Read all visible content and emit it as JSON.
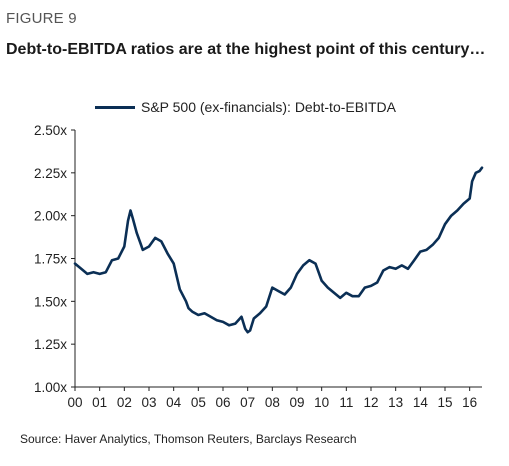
{
  "figure_label": "FIGURE 9",
  "title": "Debt-to-EBITDA ratios are at the highest point of this century…",
  "source": "Source: Haver Analytics, Thomson Reuters, Barclays Research",
  "colors": {
    "line": "#0b2f55",
    "axis": "#222222"
  },
  "chart_data": {
    "type": "line",
    "title": "Debt-to-EBITDA ratios are at the highest point of this century…",
    "xlabel": "",
    "ylabel": "",
    "ylim": [
      1.0,
      2.5
    ],
    "xlim": [
      2000.0,
      2016.5
    ],
    "grid": false,
    "legend_position": "top",
    "x_tick_labels": [
      "00",
      "01",
      "02",
      "03",
      "04",
      "05",
      "06",
      "07",
      "08",
      "09",
      "10",
      "11",
      "12",
      "13",
      "14",
      "15",
      "16"
    ],
    "y_tick_labels": [
      "1.00x",
      "1.25x",
      "1.50x",
      "1.75x",
      "2.00x",
      "2.25x",
      "2.50x"
    ],
    "series": [
      {
        "name": "S&P 500 (ex-financials): Debt-to-EBITDA",
        "x": [
          2000.0,
          2000.25,
          2000.5,
          2000.75,
          2001.0,
          2001.25,
          2001.5,
          2001.75,
          2002.0,
          2002.15,
          2002.25,
          2002.35,
          2002.5,
          2002.65,
          2002.75,
          2003.0,
          2003.25,
          2003.5,
          2003.75,
          2004.0,
          2004.25,
          2004.5,
          2004.6,
          2004.75,
          2005.0,
          2005.25,
          2005.5,
          2005.75,
          2006.0,
          2006.25,
          2006.5,
          2006.75,
          2006.9,
          2007.0,
          2007.1,
          2007.25,
          2007.5,
          2007.75,
          2008.0,
          2008.25,
          2008.5,
          2008.75,
          2009.0,
          2009.25,
          2009.5,
          2009.75,
          2010.0,
          2010.25,
          2010.5,
          2010.75,
          2011.0,
          2011.25,
          2011.5,
          2011.75,
          2012.0,
          2012.25,
          2012.5,
          2012.75,
          2013.0,
          2013.25,
          2013.5,
          2013.75,
          2014.0,
          2014.25,
          2014.5,
          2014.75,
          2015.0,
          2015.25,
          2015.5,
          2015.75,
          2016.0,
          2016.1,
          2016.25,
          2016.4,
          2016.5
        ],
        "values": [
          1.72,
          1.69,
          1.66,
          1.67,
          1.66,
          1.67,
          1.74,
          1.75,
          1.82,
          1.97,
          2.03,
          1.98,
          1.9,
          1.84,
          1.8,
          1.82,
          1.87,
          1.85,
          1.78,
          1.72,
          1.57,
          1.5,
          1.46,
          1.44,
          1.42,
          1.43,
          1.41,
          1.39,
          1.38,
          1.36,
          1.37,
          1.41,
          1.34,
          1.32,
          1.33,
          1.4,
          1.43,
          1.47,
          1.58,
          1.56,
          1.54,
          1.58,
          1.66,
          1.71,
          1.74,
          1.72,
          1.62,
          1.58,
          1.55,
          1.52,
          1.55,
          1.53,
          1.53,
          1.58,
          1.59,
          1.61,
          1.68,
          1.7,
          1.69,
          1.71,
          1.69,
          1.74,
          1.79,
          1.8,
          1.83,
          1.87,
          1.95,
          2.0,
          2.03,
          2.07,
          2.1,
          2.2,
          2.25,
          2.26,
          2.28
        ]
      }
    ]
  }
}
